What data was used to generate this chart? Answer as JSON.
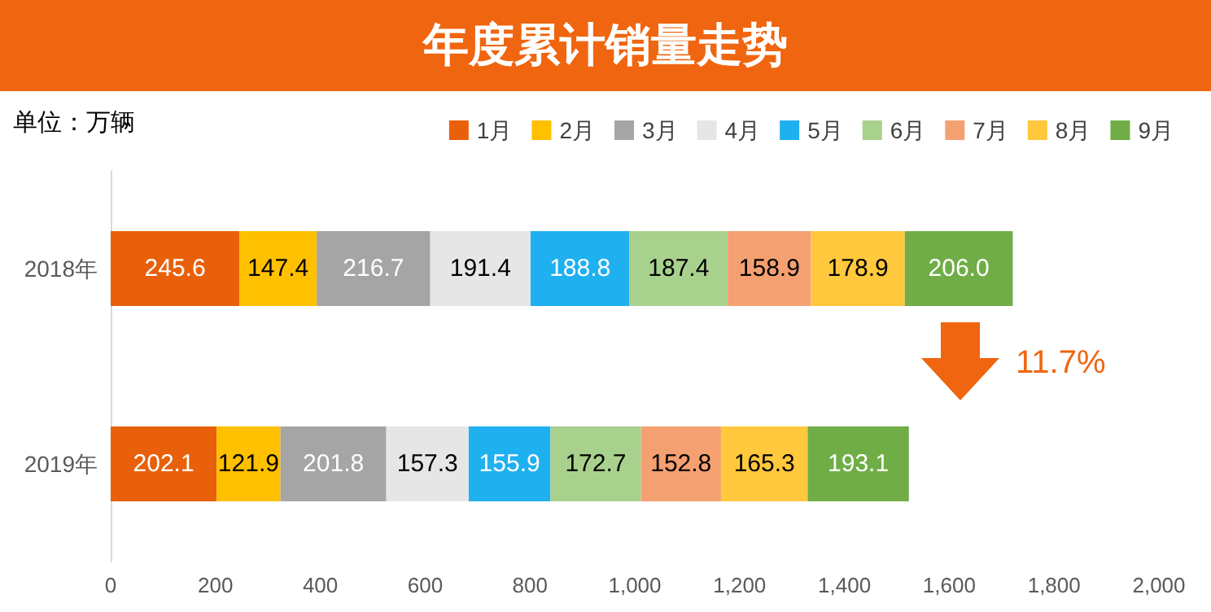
{
  "chart_data": {
    "type": "bar",
    "title": "年度累计销量走势",
    "orientation": "horizontal",
    "stacked": true,
    "legend": "top right",
    "grid": false,
    "categories": [
      "2018年",
      "2019年"
    ],
    "series": [
      {
        "name": "1月",
        "color": "#e8600a",
        "values": [
          245.6,
          202.1
        ],
        "value_labels": [
          "245.6",
          "202.1"
        ]
      },
      {
        "name": "2月",
        "color": "#ffc000",
        "values": [
          147.4,
          121.9
        ],
        "value_labels": [
          "147.4",
          "121.9"
        ]
      },
      {
        "name": "3月",
        "color": "#a5a5a5",
        "values": [
          216.7,
          201.8
        ],
        "value_labels": [
          "216.7",
          "201.8"
        ]
      },
      {
        "name": "4月",
        "color": "#e7e6e6",
        "values": [
          191.4,
          157.3
        ],
        "value_labels": [
          "191.4",
          "157.3"
        ]
      },
      {
        "name": "5月",
        "color": "#1fb0f0",
        "values": [
          188.8,
          155.9
        ],
        "value_labels": [
          "188.8",
          "155.9"
        ]
      },
      {
        "name": "6月",
        "color": "#a9d18e",
        "values": [
          187.4,
          172.7
        ],
        "value_labels": [
          "187.4",
          "172.7"
        ]
      },
      {
        "name": "7月",
        "color": "#f4a070",
        "values": [
          158.9,
          152.8
        ],
        "value_labels": [
          "158.9",
          "152.8"
        ]
      },
      {
        "name": "8月",
        "color": "#ffc83d",
        "values": [
          178.9,
          165.3
        ],
        "value_labels": [
          "178.9",
          "165.3"
        ]
      },
      {
        "name": "9月",
        "color": "#70ad47",
        "values": [
          206,
          193.1
        ],
        "value_labels": [
          "206.0",
          "193.1"
        ]
      }
    ],
    "xlim": [
      0,
      2000
    ],
    "xticks": [
      0,
      200,
      400,
      600,
      800,
      {
        "value": 1000,
        "label": "1,000"
      },
      {
        "value": 1200,
        "label": "1,200"
      },
      {
        "value": 1400,
        "label": "1,400"
      },
      {
        "value": 1600,
        "label": "1,600"
      },
      {
        "value": 1800,
        "label": "1,800"
      },
      {
        "value": 2000,
        "label": "2,000"
      }
    ],
    "annotations": [
      "单位：万辆",
      "11.7%"
    ]
  }
}
